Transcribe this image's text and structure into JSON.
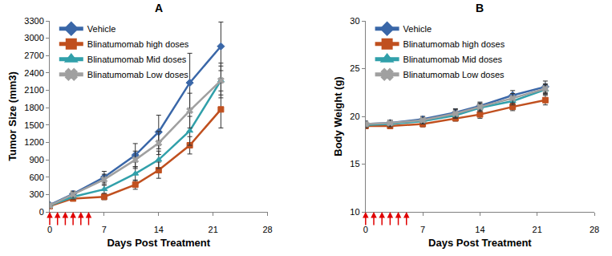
{
  "chart_data": [
    {
      "type": "line",
      "title": "A",
      "x_label": "Days Post Treatment",
      "y_label": "Tumor Size (mm3)",
      "x": [
        0,
        3,
        7,
        11,
        14,
        18,
        22
      ],
      "xlim": [
        0,
        28
      ],
      "xticks": [
        0,
        7,
        14,
        21,
        28
      ],
      "ylim": [
        0,
        3300
      ],
      "yticks": [
        0,
        300,
        600,
        900,
        1200,
        1500,
        1800,
        2100,
        2400,
        2700,
        3000,
        3300
      ],
      "grid": false,
      "legend": "upper left",
      "dose_days": [
        0,
        1,
        2,
        3,
        4,
        5
      ],
      "series": [
        {
          "name": "Vehicle",
          "color": "#3a67a8",
          "marker": "diamond",
          "values": [
            120,
            310,
            600,
            980,
            1380,
            2230,
            2860
          ],
          "error": [
            20,
            50,
            100,
            200,
            290,
            510,
            420
          ]
        },
        {
          "name": "Blinatumomab high doses",
          "color": "#c0501f",
          "marker": "square",
          "values": [
            100,
            230,
            260,
            470,
            720,
            1150,
            1770
          ],
          "error": [
            15,
            40,
            50,
            80,
            140,
            150,
            320
          ]
        },
        {
          "name": "Blinatumomab Mid doses",
          "color": "#31a0aa",
          "marker": "triangle-up",
          "values": [
            110,
            260,
            390,
            660,
            900,
            1400,
            2270
          ],
          "error": [
            15,
            40,
            70,
            120,
            150,
            250,
            300
          ]
        },
        {
          "name": "Blinatumomab Low doses",
          "color": "#a0a0a0",
          "marker": "x",
          "values": [
            110,
            300,
            560,
            900,
            1190,
            1750,
            2270
          ],
          "error": [
            15,
            50,
            90,
            150,
            200,
            300,
            250
          ]
        }
      ]
    },
    {
      "type": "line",
      "title": "B",
      "x_label": "Days Post Treatment",
      "y_label": "Body Weight (g)",
      "x": [
        0,
        3,
        7,
        11,
        14,
        18,
        22
      ],
      "xlim": [
        0,
        28
      ],
      "xticks": [
        0,
        7,
        14,
        21,
        28
      ],
      "ylim": [
        10,
        30
      ],
      "yticks": [
        10,
        15,
        20,
        25,
        30
      ],
      "grid": false,
      "legend": "upper left",
      "dose_days": [
        0,
        1,
        2,
        3,
        4,
        5
      ],
      "series": [
        {
          "name": "Vehicle",
          "color": "#3a67a8",
          "marker": "diamond",
          "values": [
            19.2,
            19.3,
            19.7,
            20.4,
            21.1,
            22.2,
            23.1
          ],
          "error": [
            0.3,
            0.3,
            0.3,
            0.4,
            0.4,
            0.5,
            0.6
          ]
        },
        {
          "name": "Blinatumomab high doses",
          "color": "#c0501f",
          "marker": "square",
          "values": [
            19.0,
            19.0,
            19.2,
            19.8,
            20.2,
            21.0,
            21.7
          ],
          "error": [
            0.3,
            0.3,
            0.3,
            0.3,
            0.4,
            0.4,
            0.5
          ]
        },
        {
          "name": "Blinatumomab Mid doses",
          "color": "#31a0aa",
          "marker": "triangle-up",
          "values": [
            19.1,
            19.2,
            19.5,
            20.1,
            20.9,
            21.6,
            22.8
          ],
          "error": [
            0.3,
            0.3,
            0.3,
            0.3,
            0.4,
            0.4,
            0.5
          ]
        },
        {
          "name": "Blinatumomab Low doses",
          "color": "#a0a0a0",
          "marker": "x",
          "values": [
            19.2,
            19.3,
            19.6,
            20.3,
            21.0,
            21.9,
            22.9
          ],
          "error": [
            0.3,
            0.3,
            0.3,
            0.4,
            0.4,
            0.5,
            0.5
          ]
        }
      ]
    }
  ]
}
